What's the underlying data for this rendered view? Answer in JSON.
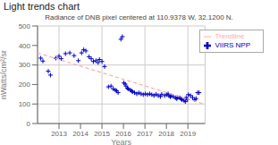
{
  "chart_data": {
    "type": "scatter",
    "title": "Light trends chart",
    "subtitle": "Radiance of DNB pixel centered at 110.9378 W, 32.1200 N.",
    "xlabel": "Years",
    "ylabel": "nWatts/cm²/sr",
    "xlim": [
      2012.0,
      2019.8
    ],
    "xticks": [
      2013,
      2014,
      2015,
      2016,
      2017,
      2018,
      2019
    ],
    "ylim": [
      0,
      500
    ],
    "yticks": [
      0,
      100,
      200,
      300,
      400,
      500
    ],
    "grid": true,
    "legend": "upper right",
    "series": [
      {
        "name": "VIIRS NPP",
        "type": "scatter",
        "color": "#0000cc",
        "marker": "plus",
        "x": [
          2012.15,
          2012.25,
          2012.5,
          2012.6,
          2012.85,
          2013.0,
          2013.1,
          2013.3,
          2013.5,
          2013.7,
          2013.9,
          2014.05,
          2014.15,
          2014.25,
          2014.4,
          2014.5,
          2014.6,
          2014.72,
          2014.82,
          2014.88,
          2015.0,
          2015.12,
          2015.3,
          2015.42,
          2015.52,
          2015.62,
          2015.68,
          2015.75,
          2015.88,
          2015.95,
          2016.02,
          2016.08,
          2016.12,
          2016.18,
          2016.22,
          2016.32,
          2016.38,
          2016.42,
          2016.52,
          2016.62,
          2016.72,
          2016.82,
          2016.92,
          2017.02,
          2017.12,
          2017.22,
          2017.32,
          2017.42,
          2017.52,
          2017.62,
          2017.72,
          2017.78,
          2017.92,
          2018.02,
          2018.08,
          2018.12,
          2018.18,
          2018.22,
          2018.32,
          2018.42,
          2018.48,
          2018.52,
          2018.62,
          2018.68,
          2018.72,
          2018.82,
          2018.88,
          2018.92,
          2018.98,
          2019.02,
          2019.12,
          2019.22,
          2019.32,
          2019.38,
          2019.45,
          2019.52
        ],
        "values": [
          335,
          320,
          268,
          248,
          335,
          345,
          332,
          358,
          362,
          348,
          322,
          362,
          378,
          372,
          342,
          332,
          318,
          322,
          312,
          328,
          318,
          292,
          188,
          192,
          178,
          172,
          167,
          158,
          432,
          445,
          208,
          202,
          192,
          182,
          177,
          172,
          167,
          162,
          158,
          152,
          157,
          152,
          148,
          152,
          148,
          152,
          148,
          143,
          150,
          143,
          138,
          150,
          143,
          148,
          152,
          142,
          137,
          142,
          138,
          132,
          127,
          133,
          132,
          127,
          122,
          118,
          112,
          133,
          122,
          148,
          143,
          133,
          122,
          128,
          158,
          158
        ]
      },
      {
        "name": "Trendline",
        "type": "line",
        "color": "#ffaaaa",
        "line_style": "dashed",
        "x": [
          2012.0,
          2019.8
        ],
        "values": [
          362,
          98
        ]
      }
    ]
  }
}
